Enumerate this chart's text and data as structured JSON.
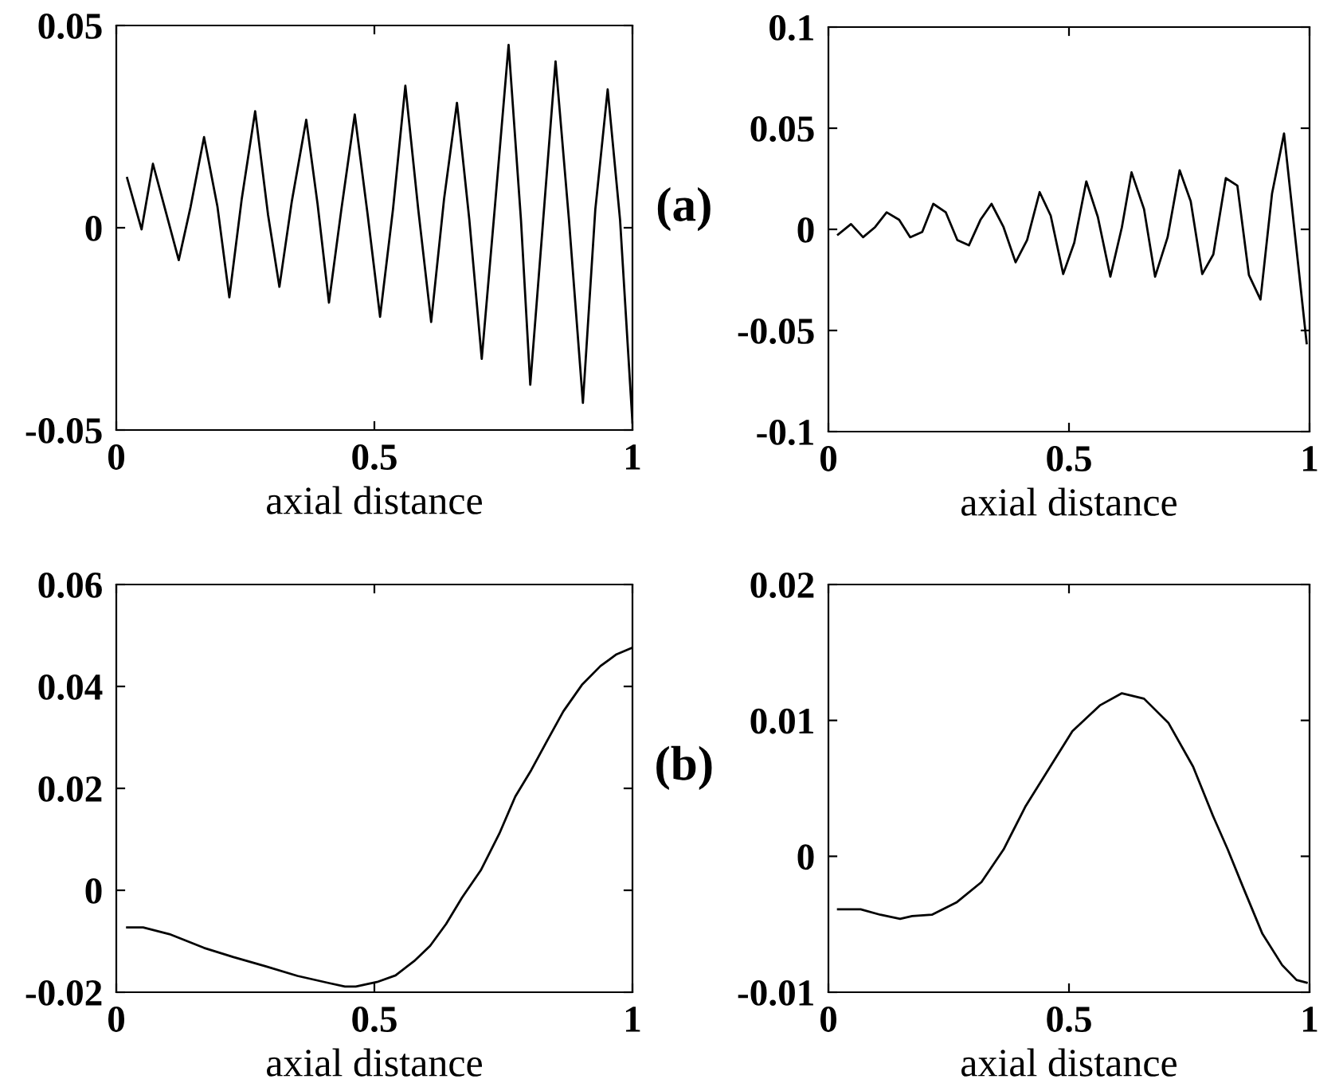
{
  "chart_data": [
    {
      "type": "line",
      "xlabel": "axial distance",
      "xlim": [
        0,
        1
      ],
      "xticks": [
        0,
        0.5,
        1
      ],
      "ylim": [
        -0.05,
        0.05
      ],
      "yticks": [
        -0.05,
        0,
        0.05
      ],
      "series": [
        {
          "color": "#000000",
          "x": [
            0.021,
            0.049,
            0.071,
            0.121,
            0.144,
            0.17,
            0.196,
            0.219,
            0.243,
            0.269,
            0.294,
            0.316,
            0.34,
            0.368,
            0.39,
            0.412,
            0.436,
            0.462,
            0.487,
            0.511,
            0.536,
            0.56,
            0.585,
            0.61,
            0.635,
            0.66,
            0.684,
            0.708,
            0.733,
            0.76,
            0.784,
            0.802,
            0.827,
            0.851,
            0.877,
            0.904,
            0.928,
            0.952,
            0.976,
            1.0
          ],
          "values": [
            0.0123,
            -0.0004,
            0.0158,
            -0.008,
            0.0052,
            0.0224,
            0.0052,
            -0.0172,
            0.0071,
            0.0288,
            0.0032,
            -0.0146,
            0.0065,
            0.0267,
            0.0058,
            -0.0185,
            0.0045,
            0.028,
            0.0032,
            -0.022,
            0.0045,
            0.0351,
            0.0045,
            -0.0233,
            0.0071,
            0.0309,
            0.0019,
            -0.0324,
            0.0045,
            0.0452,
            0.0019,
            -0.0388,
            0.0019,
            0.0411,
            0.0019,
            -0.0433,
            0.0045,
            0.0342,
            0.0019,
            -0.0482
          ]
        }
      ]
    },
    {
      "type": "line",
      "xlabel": "axial distance",
      "annotations": [
        "(a)"
      ],
      "xlim": [
        0,
        1
      ],
      "xticks": [
        0,
        0.5,
        1
      ],
      "ylim": [
        -0.1,
        0.1
      ],
      "yticks": [
        -0.1,
        -0.05,
        0,
        0.05,
        0.1
      ],
      "series": [
        {
          "color": "#000000",
          "x": [
            0.02,
            0.047,
            0.072,
            0.097,
            0.121,
            0.147,
            0.17,
            0.195,
            0.218,
            0.244,
            0.268,
            0.292,
            0.316,
            0.339,
            0.364,
            0.389,
            0.413,
            0.439,
            0.462,
            0.488,
            0.511,
            0.536,
            0.56,
            0.586,
            0.61,
            0.63,
            0.656,
            0.679,
            0.705,
            0.73,
            0.753,
            0.777,
            0.8,
            0.826,
            0.85,
            0.874,
            0.898,
            0.922,
            0.947,
            0.994
          ],
          "values": [
            -0.0026,
            0.0026,
            -0.0039,
            0.0011,
            0.0084,
            0.0047,
            -0.0039,
            -0.0013,
            0.0126,
            0.0084,
            -0.0053,
            -0.0079,
            0.0047,
            0.0126,
            0.0011,
            -0.0163,
            -0.0053,
            0.0184,
            0.0068,
            -0.0221,
            -0.0066,
            0.0237,
            0.0061,
            -0.0234,
            0.0011,
            0.0282,
            0.01,
            -0.0234,
            -0.0039,
            0.0292,
            0.0139,
            -0.0221,
            -0.0124,
            0.0253,
            0.0216,
            -0.0226,
            -0.0347,
            0.0176,
            0.0474,
            -0.0563
          ]
        }
      ]
    },
    {
      "type": "line",
      "xlabel": "axial distance",
      "xlim": [
        0,
        1
      ],
      "xticks": [
        0,
        0.5,
        1
      ],
      "ylim": [
        -0.02,
        0.06
      ],
      "yticks": [
        -0.02,
        0,
        0.02,
        0.04,
        0.06
      ],
      "series": [
        {
          "color": "#000000",
          "x": [
            0.021,
            0.052,
            0.103,
            0.17,
            0.227,
            0.289,
            0.351,
            0.412,
            0.443,
            0.464,
            0.505,
            0.541,
            0.577,
            0.608,
            0.639,
            0.67,
            0.706,
            0.742,
            0.773,
            0.804,
            0.835,
            0.866,
            0.902,
            0.938,
            0.969,
            1.0
          ],
          "values": [
            -0.0073,
            -0.0073,
            -0.0086,
            -0.0113,
            -0.0131,
            -0.0149,
            -0.0168,
            -0.0182,
            -0.0189,
            -0.0189,
            -0.018,
            -0.0167,
            -0.0139,
            -0.0109,
            -0.0066,
            -0.0014,
            0.0039,
            0.0111,
            0.0184,
            0.0236,
            0.0294,
            0.0351,
            0.0403,
            0.044,
            0.0463,
            0.0476
          ]
        }
      ]
    },
    {
      "type": "line",
      "xlabel": "axial distance",
      "annotations": [
        "(b)"
      ],
      "xlim": [
        0,
        1
      ],
      "xticks": [
        0,
        0.5,
        1
      ],
      "ylim": [
        -0.01,
        0.02
      ],
      "yticks": [
        -0.01,
        0,
        0.01,
        0.02
      ],
      "series": [
        {
          "color": "#000000",
          "x": [
            0.02,
            0.067,
            0.108,
            0.149,
            0.174,
            0.215,
            0.266,
            0.318,
            0.364,
            0.41,
            0.461,
            0.507,
            0.564,
            0.61,
            0.656,
            0.707,
            0.758,
            0.799,
            0.83,
            0.861,
            0.902,
            0.943,
            0.973,
            0.994
          ],
          "values": [
            -0.0039,
            -0.0039,
            -0.0043,
            -0.0046,
            -0.0044,
            -0.0043,
            -0.0034,
            -0.0019,
            0.0005,
            0.0037,
            0.0066,
            0.0092,
            0.0111,
            0.012,
            0.0116,
            0.0098,
            0.0066,
            0.003,
            0.0005,
            -0.0022,
            -0.0057,
            -0.008,
            -0.0091,
            -0.0093
          ]
        }
      ]
    }
  ]
}
